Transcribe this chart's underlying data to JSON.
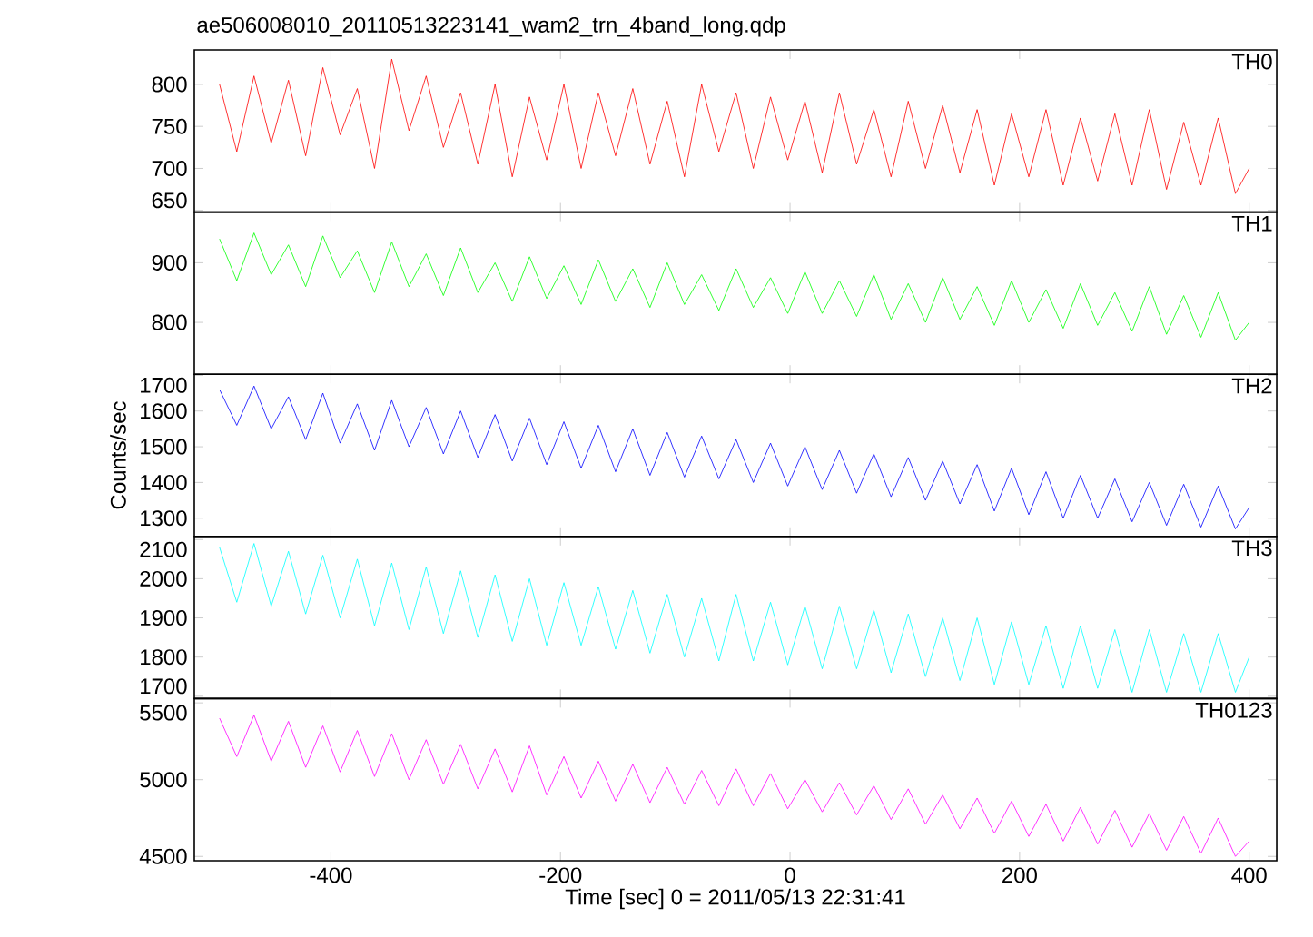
{
  "chart_data": [
    {
      "type": "line",
      "title": "ae506008010_20110513223141_wam2_trn_4band_long.qdp",
      "xlim": [
        -519,
        424
      ],
      "xticks": [
        -400,
        -200,
        0,
        200,
        400
      ],
      "ylim": [
        648,
        841
      ],
      "yticks": [
        650,
        700,
        750,
        800
      ],
      "tick_labels": "y",
      "legend": false,
      "x": [
        -497,
        -482,
        -467,
        -452,
        -437,
        -422,
        -407,
        -392,
        -377,
        -362,
        -347,
        -332,
        -317,
        -302,
        -287,
        -272,
        -257,
        -242,
        -227,
        -212,
        -197,
        -182,
        -167,
        -152,
        -137,
        -122,
        -107,
        -92,
        -77,
        -62,
        -47,
        -32,
        -17,
        -2,
        13,
        28,
        43,
        58,
        73,
        88,
        103,
        118,
        133,
        148,
        163,
        178,
        193,
        208,
        223,
        238,
        253,
        268,
        283,
        298,
        313,
        328,
        343,
        358,
        373,
        388,
        400
      ],
      "series": [
        {
          "name": "TH0",
          "color": "#ff0000",
          "values": [
            800,
            720,
            810,
            730,
            805,
            715,
            820,
            740,
            795,
            700,
            830,
            745,
            810,
            725,
            790,
            705,
            800,
            690,
            785,
            710,
            800,
            700,
            790,
            715,
            795,
            705,
            780,
            690,
            800,
            720,
            790,
            700,
            785,
            710,
            780,
            695,
            790,
            705,
            770,
            690,
            780,
            700,
            775,
            695,
            770,
            680,
            765,
            690,
            770,
            680,
            760,
            685,
            765,
            680,
            770,
            675,
            755,
            680,
            760,
            670,
            700
          ]
        }
      ]
    },
    {
      "type": "line",
      "xlim": [
        -519,
        424
      ],
      "xticks": [
        -400,
        -200,
        0,
        200,
        400
      ],
      "ylim": [
        713,
        985
      ],
      "yticks": [
        800,
        900
      ],
      "tick_labels": "y",
      "legend": false,
      "x": [
        -497,
        -482,
        -467,
        -452,
        -437,
        -422,
        -407,
        -392,
        -377,
        -362,
        -347,
        -332,
        -317,
        -302,
        -287,
        -272,
        -257,
        -242,
        -227,
        -212,
        -197,
        -182,
        -167,
        -152,
        -137,
        -122,
        -107,
        -92,
        -77,
        -62,
        -47,
        -32,
        -17,
        -2,
        13,
        28,
        43,
        58,
        73,
        88,
        103,
        118,
        133,
        148,
        163,
        178,
        193,
        208,
        223,
        238,
        253,
        268,
        283,
        298,
        313,
        328,
        343,
        358,
        373,
        388,
        400
      ],
      "series": [
        {
          "name": "TH1",
          "color": "#00ff00",
          "values": [
            940,
            870,
            950,
            880,
            930,
            860,
            945,
            875,
            920,
            850,
            935,
            860,
            915,
            845,
            925,
            850,
            900,
            835,
            910,
            840,
            895,
            830,
            905,
            835,
            890,
            825,
            900,
            830,
            880,
            820,
            890,
            825,
            875,
            815,
            885,
            815,
            870,
            810,
            880,
            805,
            865,
            800,
            875,
            805,
            860,
            795,
            870,
            800,
            855,
            790,
            865,
            795,
            850,
            785,
            860,
            780,
            845,
            775,
            850,
            770,
            800
          ]
        }
      ]
    },
    {
      "type": "line",
      "ylabel": "Counts/sec",
      "xlim": [
        -519,
        424
      ],
      "xticks": [
        -400,
        -200,
        0,
        200,
        400
      ],
      "ylim": [
        1249,
        1703
      ],
      "yticks": [
        1300,
        1400,
        1500,
        1600,
        1700
      ],
      "tick_labels": "y",
      "legend": false,
      "x": [
        -497,
        -482,
        -467,
        -452,
        -437,
        -422,
        -407,
        -392,
        -377,
        -362,
        -347,
        -332,
        -317,
        -302,
        -287,
        -272,
        -257,
        -242,
        -227,
        -212,
        -197,
        -182,
        -167,
        -152,
        -137,
        -122,
        -107,
        -92,
        -77,
        -62,
        -47,
        -32,
        -17,
        -2,
        13,
        28,
        43,
        58,
        73,
        88,
        103,
        118,
        133,
        148,
        163,
        178,
        193,
        208,
        223,
        238,
        253,
        268,
        283,
        298,
        313,
        328,
        343,
        358,
        373,
        388,
        400
      ],
      "series": [
        {
          "name": "TH2",
          "color": "#0000ff",
          "values": [
            1660,
            1560,
            1670,
            1550,
            1640,
            1520,
            1650,
            1510,
            1620,
            1490,
            1630,
            1500,
            1610,
            1480,
            1600,
            1470,
            1590,
            1460,
            1580,
            1450,
            1570,
            1440,
            1560,
            1430,
            1550,
            1420,
            1540,
            1415,
            1530,
            1410,
            1520,
            1400,
            1510,
            1390,
            1500,
            1380,
            1490,
            1370,
            1480,
            1360,
            1470,
            1350,
            1460,
            1340,
            1450,
            1320,
            1440,
            1310,
            1430,
            1300,
            1420,
            1300,
            1410,
            1290,
            1400,
            1280,
            1395,
            1275,
            1390,
            1270,
            1330
          ]
        }
      ]
    },
    {
      "type": "line",
      "xlim": [
        -519,
        424
      ],
      "xticks": [
        -400,
        -200,
        0,
        200,
        400
      ],
      "ylim": [
        1694,
        2108
      ],
      "yticks": [
        1700,
        1800,
        1900,
        2000,
        2100
      ],
      "tick_labels": "y",
      "legend": false,
      "x": [
        -497,
        -482,
        -467,
        -452,
        -437,
        -422,
        -407,
        -392,
        -377,
        -362,
        -347,
        -332,
        -317,
        -302,
        -287,
        -272,
        -257,
        -242,
        -227,
        -212,
        -197,
        -182,
        -167,
        -152,
        -137,
        -122,
        -107,
        -92,
        -77,
        -62,
        -47,
        -32,
        -17,
        -2,
        13,
        28,
        43,
        58,
        73,
        88,
        103,
        118,
        133,
        148,
        163,
        178,
        193,
        208,
        223,
        238,
        253,
        268,
        283,
        298,
        313,
        328,
        343,
        358,
        373,
        388,
        400
      ],
      "series": [
        {
          "name": "TH3",
          "color": "#00ffff",
          "values": [
            2080,
            1940,
            2090,
            1930,
            2070,
            1910,
            2060,
            1900,
            2050,
            1880,
            2040,
            1870,
            2030,
            1860,
            2020,
            1850,
            2010,
            1840,
            2000,
            1830,
            1990,
            1830,
            1980,
            1820,
            1970,
            1810,
            1960,
            1800,
            1950,
            1790,
            1960,
            1790,
            1940,
            1780,
            1930,
            1770,
            1930,
            1770,
            1920,
            1760,
            1910,
            1750,
            1900,
            1740,
            1900,
            1730,
            1890,
            1730,
            1880,
            1720,
            1880,
            1720,
            1870,
            1710,
            1870,
            1710,
            1860,
            1710,
            1860,
            1710,
            1800
          ]
        }
      ]
    },
    {
      "type": "line",
      "xlabel": "Time [sec] 0 = 2011/05/13 22:31:41",
      "xlim": [
        -519,
        424
      ],
      "xticks": [
        -400,
        -200,
        0,
        200,
        400
      ],
      "ylim": [
        4472,
        5528
      ],
      "yticks": [
        4500,
        5000,
        5500
      ],
      "legend": false,
      "x": [
        -497,
        -482,
        -467,
        -452,
        -437,
        -422,
        -407,
        -392,
        -377,
        -362,
        -347,
        -332,
        -317,
        -302,
        -287,
        -272,
        -257,
        -242,
        -227,
        -212,
        -197,
        -182,
        -167,
        -152,
        -137,
        -122,
        -107,
        -92,
        -77,
        -62,
        -47,
        -32,
        -17,
        -2,
        13,
        28,
        43,
        58,
        73,
        88,
        103,
        118,
        133,
        148,
        163,
        178,
        193,
        208,
        223,
        238,
        253,
        268,
        283,
        298,
        313,
        328,
        343,
        358,
        373,
        388,
        400
      ],
      "series": [
        {
          "name": "TH0123",
          "color": "#ff00ff",
          "values": [
            5400,
            5150,
            5420,
            5120,
            5380,
            5080,
            5350,
            5050,
            5320,
            5020,
            5300,
            5000,
            5260,
            4970,
            5230,
            4940,
            5200,
            4920,
            5220,
            4900,
            5150,
            4880,
            5120,
            4860,
            5100,
            4850,
            5080,
            4840,
            5060,
            4830,
            5070,
            4830,
            5040,
            4810,
            5000,
            4790,
            4980,
            4770,
            4960,
            4740,
            4940,
            4710,
            4900,
            4680,
            4880,
            4650,
            4860,
            4630,
            4840,
            4600,
            4820,
            4580,
            4800,
            4560,
            4780,
            4540,
            4760,
            4520,
            4750,
            4500,
            4600
          ]
        }
      ]
    }
  ]
}
